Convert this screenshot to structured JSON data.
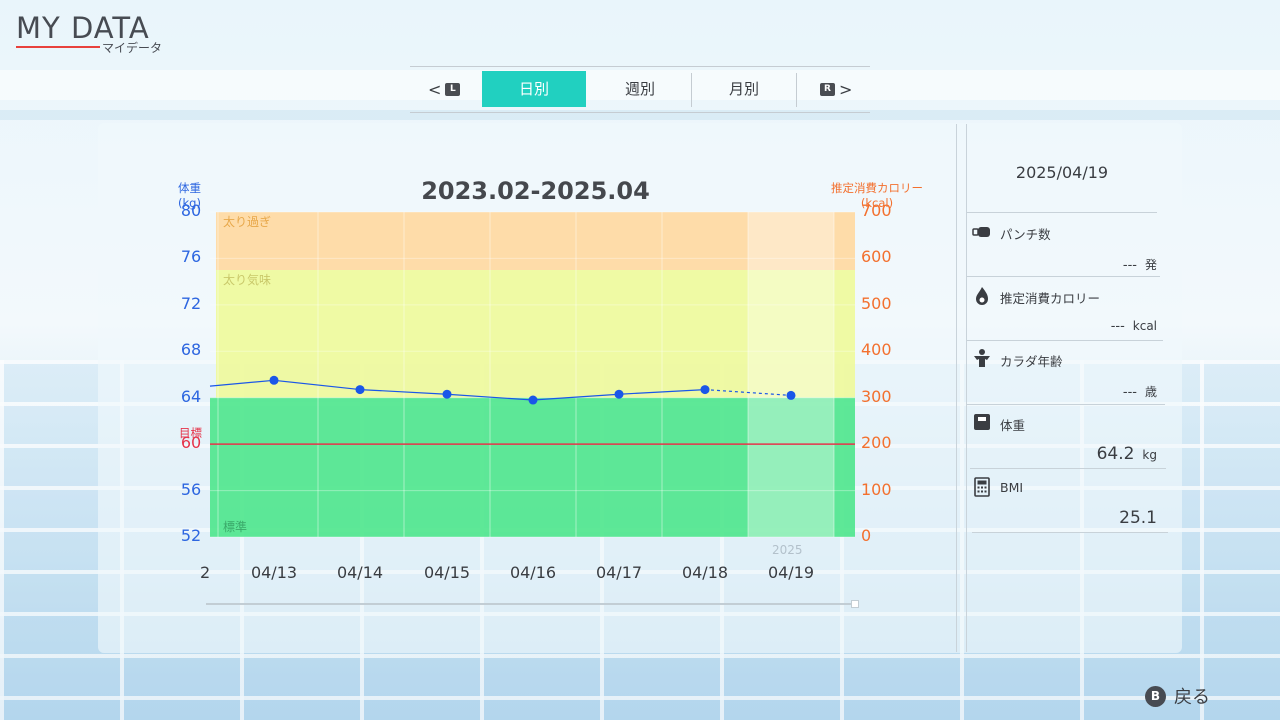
{
  "header": {
    "title": "MY DATA",
    "subtitle": "マイデータ"
  },
  "tabs": {
    "left_button": "L",
    "right_button": "R",
    "items": [
      {
        "label": "日別",
        "active": true
      },
      {
        "label": "週別",
        "active": false
      },
      {
        "label": "月別",
        "active": false
      }
    ]
  },
  "chart_data": {
    "type": "line",
    "title": "2023.02-2025.04",
    "left_axis": {
      "label_line1": "体重",
      "label_line2": "(kg)",
      "ylim": [
        52,
        80
      ],
      "ticks": [
        "80",
        "76",
        "72",
        "68",
        "64",
        "60",
        "56",
        "52"
      ],
      "target_label": "目標",
      "target_value": 60
    },
    "right_axis": {
      "label_line1": "推定消費カロリー",
      "label_line2": "(kcal)",
      "ylim": [
        0,
        700
      ],
      "ticks": [
        "700",
        "600",
        "500",
        "400",
        "300",
        "200",
        "100",
        "0"
      ]
    },
    "zones": [
      {
        "label": "太り過ぎ",
        "from": 75,
        "to": 80,
        "color": "#ffd8a0"
      },
      {
        "label": "太り気味",
        "from": 64,
        "to": 75,
        "color": "#eef99a"
      },
      {
        "label": "標準",
        "from": 52,
        "to": 64,
        "color": "#4ee68c"
      }
    ],
    "x_partial_tick": "2",
    "categories": [
      "04/13",
      "04/14",
      "04/15",
      "04/16",
      "04/17",
      "04/18",
      "04/19"
    ],
    "year_label": "2025",
    "series": [
      {
        "values": [
          65.5,
          64.7,
          64.3,
          63.8,
          64.3,
          64.7,
          64.2
        ],
        "color": "#1a57e8"
      }
    ],
    "leading_value": 65.0,
    "colors": {
      "weight": "#2d66e0",
      "calorie": "#f3702e",
      "target": "#e5334a",
      "tab_active": "#21d0c0"
    }
  },
  "side": {
    "date": "2025/04/19",
    "stats": [
      {
        "icon": "punch-icon",
        "label": "パンチ数",
        "value": "---",
        "unit": "発"
      },
      {
        "icon": "flame-icon",
        "label": "推定消費カロリー",
        "value": "---",
        "unit": "kcal"
      },
      {
        "icon": "body-icon",
        "label": "カラダ年齢",
        "value": "---",
        "unit": "歳"
      },
      {
        "icon": "scale-icon",
        "label": "体重",
        "value": "64.2",
        "unit": "kg"
      },
      {
        "icon": "calculator-icon",
        "label": "BMI",
        "value": "25.1",
        "unit": ""
      }
    ]
  },
  "footer": {
    "button": "B",
    "label": "戻る"
  }
}
